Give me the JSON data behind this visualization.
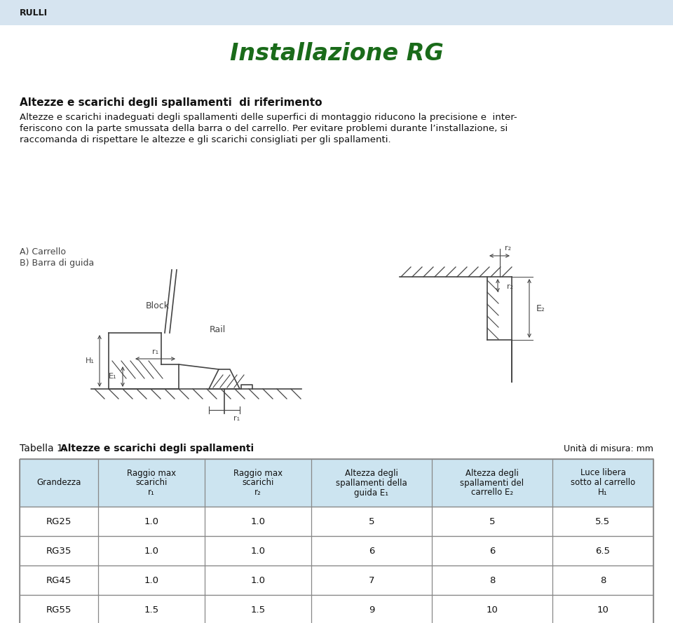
{
  "header_bg": "#d6e4f0",
  "header_text": "RULLI",
  "header_text_color": "#1a1a1a",
  "title": "Installazione RG",
  "title_color": "#1a6b1a",
  "section_title": "Altezze e scarichi degli spallamenti  di riferimento",
  "body_text1": "Altezze e scarichi inadeguati degli spallamenti delle superfici di montaggio riducono la precisione e  inter-",
  "body_text2": "feriscono con la parte smussata della barra o del carrello. Per evitare problemi durante l’installazione, si",
  "body_text3": "raccomanda di rispettare le altezze e gli scarichi consigliati per gli spallamenti.",
  "label_A": "A) Carrello",
  "label_B": "B) Barra di guida",
  "label_Block": "Block",
  "label_Rail": "Rail",
  "table_title_plain": "Tabella 1. ",
  "table_title_bold": "Altezze e scarichi degli spallamenti",
  "table_unit": "Unità di misura: mm",
  "col_headers": [
    "Grandezza",
    "Raggio max\nscarichi\nr₁",
    "Raggio max\nscarichi\nr₂",
    "Altezza degli\nspallamenti della\nguida E₁",
    "Altezza degli\nspallamenti del\ncarrello E₂",
    "Luce libera\nsotto al carrello\nH₁"
  ],
  "col_header_bg": "#cce4f0",
  "table_data": [
    [
      "RG25",
      "1.0",
      "1.0",
      "5",
      "5",
      "5.5"
    ],
    [
      "RG35",
      "1.0",
      "1.0",
      "6",
      "6",
      "6.5"
    ],
    [
      "RG45",
      "1.0",
      "1.0",
      "7",
      "8",
      "8"
    ],
    [
      "RG55",
      "1.5",
      "1.5",
      "9",
      "10",
      "10"
    ]
  ],
  "table_border_color": "#888888",
  "bg_color": "#ffffff",
  "diagram_color": "#444444"
}
